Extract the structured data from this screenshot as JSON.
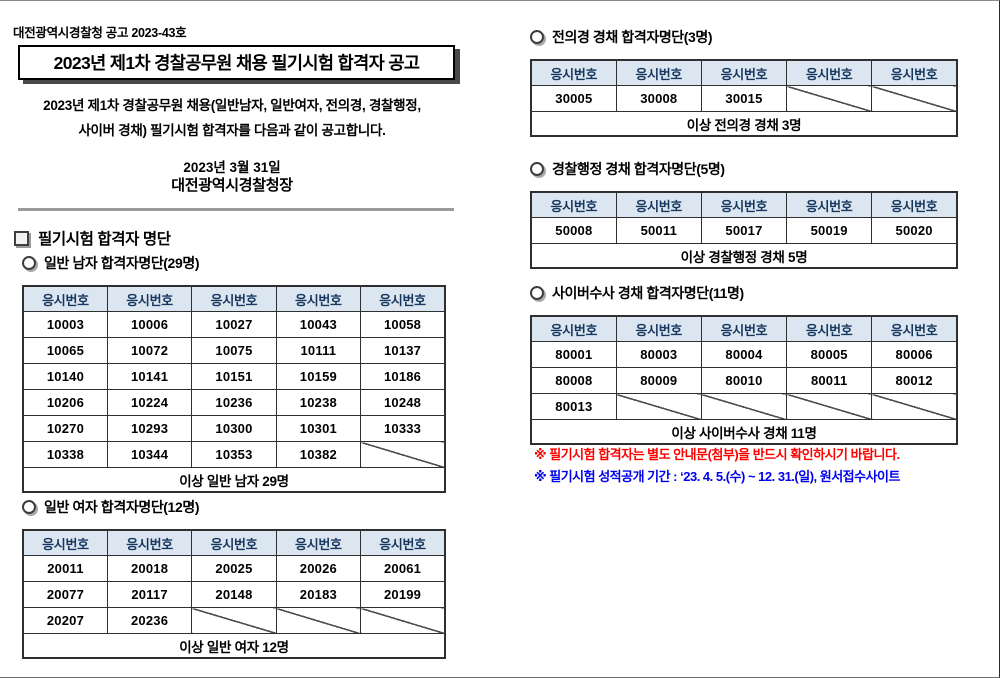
{
  "page": {
    "notice_no": "대전광역시경찰청 공고 2023-43호",
    "title": "2023년 제1차 경찰공무원 채용 필기시험 합격자 공고",
    "intro_line1": "2023년 제1차 경찰공무원 채용(일반남자, 일반여자, 전의경, 경찰행정,",
    "intro_line2": "사이버 경채) 필기시험 합격자를 다음과 같이 공고합니다.",
    "date": "2023년 3월 31일",
    "signer": "대전광역시경찰청장",
    "section_title": "필기시험 합격자 명단"
  },
  "colors": {
    "table_header_bg": "#dce6f1",
    "table_header_text": "#17375e",
    "note_red": "#ff0000",
    "note_blue": "#0000ee"
  },
  "tables": [
    {
      "name": "general-male",
      "heading": "일반 남자 합격자명단(29명)",
      "header": [
        "응시번호",
        "응시번호",
        "응시번호",
        "응시번호",
        "응시번호"
      ],
      "rows": [
        [
          "10003",
          "10006",
          "10027",
          "10043",
          "10058"
        ],
        [
          "10065",
          "10072",
          "10075",
          "10111",
          "10137"
        ],
        [
          "10140",
          "10141",
          "10151",
          "10159",
          "10186"
        ],
        [
          "10206",
          "10224",
          "10236",
          "10238",
          "10248"
        ],
        [
          "10270",
          "10293",
          "10300",
          "10301",
          "10333"
        ],
        [
          "10338",
          "10344",
          "10353",
          "10382",
          null
        ]
      ],
      "footer": "이상 일반 남자 29명"
    },
    {
      "name": "general-female",
      "heading": "일반 여자 합격자명단(12명)",
      "header": [
        "응시번호",
        "응시번호",
        "응시번호",
        "응시번호",
        "응시번호"
      ],
      "rows": [
        [
          "20011",
          "20018",
          "20025",
          "20026",
          "20061"
        ],
        [
          "20077",
          "20117",
          "20148",
          "20183",
          "20199"
        ],
        [
          "20207",
          "20236",
          null,
          null,
          null
        ]
      ],
      "footer": "이상 일반 여자 12명"
    },
    {
      "name": "jeonuigyeong",
      "heading": "전의경 경채 합격자명단(3명)",
      "header": [
        "응시번호",
        "응시번호",
        "응시번호",
        "응시번호",
        "응시번호"
      ],
      "rows": [
        [
          "30005",
          "30008",
          "30015",
          null,
          null
        ]
      ],
      "footer": "이상 전의경 경채 3명"
    },
    {
      "name": "police-admin",
      "heading": "경찰행정 경채 합격자명단(5명)",
      "header": [
        "응시번호",
        "응시번호",
        "응시번호",
        "응시번호",
        "응시번호"
      ],
      "rows": [
        [
          "50008",
          "50011",
          "50017",
          "50019",
          "50020"
        ]
      ],
      "footer": "이상 경찰행정 경채 5명"
    },
    {
      "name": "cyber",
      "heading": "사이버수사 경채 합격자명단(11명)",
      "header": [
        "응시번호",
        "응시번호",
        "응시번호",
        "응시번호",
        "응시번호"
      ],
      "rows": [
        [
          "80001",
          "80003",
          "80004",
          "80005",
          "80006"
        ],
        [
          "80008",
          "80009",
          "80010",
          "80011",
          "80012"
        ],
        [
          "80013",
          null,
          null,
          null,
          null
        ]
      ],
      "footer": "이상 사이버수사 경채 11명"
    }
  ],
  "notes": [
    {
      "text": "※ 필기시험 합격자는 별도 안내문(첨부)을 반드시 확인하시기 바랍니다.",
      "color": "#ff0000"
    },
    {
      "text": "※ 필기시험 성적공개 기간 : ‘23. 4. 5.(수) ~ 12. 31.(일), 원서접수사이트",
      "color": "#0000ee"
    }
  ]
}
